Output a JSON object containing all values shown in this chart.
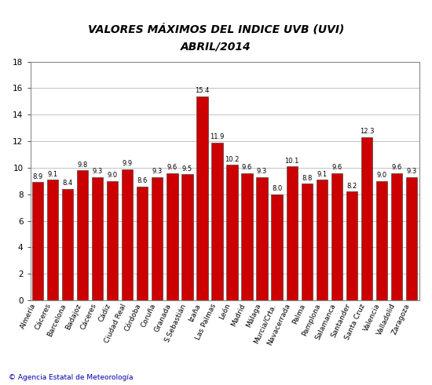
{
  "title_line1": "VALORES MÁXIMOS DEL INDICE UVB (UVI)",
  "title_line2": "ABRIL/2014",
  "labels": [
    "Almería",
    "Cáceres",
    "Barcelona",
    "Badajoz",
    "Cáceres",
    "Cádiz",
    "Ciudad Real",
    "Córdoba",
    "Coruña",
    "Granada",
    "S.Sebastián",
    "Izaña",
    "Las Palmas",
    "León",
    "Madrid",
    "Málaga",
    "Murcia/Crta.",
    "Navacerrada",
    "Palma",
    "Pamplona",
    "Salamanca",
    "Santander",
    "Santa Cruz",
    "Valencia",
    "Valladolid",
    "Zaragoza"
  ],
  "values": [
    8.9,
    9.1,
    8.4,
    9.8,
    9.3,
    9.0,
    9.9,
    8.6,
    9.3,
    9.6,
    9.5,
    15.4,
    11.9,
    10.2,
    9.6,
    9.3,
    8.0,
    10.1,
    8.8,
    9.1,
    9.6,
    8.2,
    12.3,
    9.0,
    9.6,
    9.3
  ],
  "bar_color": "#cc0000",
  "bar_edge_color": "#333333",
  "background_color": "#ffffff",
  "grid_color": "#aaaaaa",
  "ylim": [
    0,
    18
  ],
  "yticks": [
    0,
    2,
    4,
    6,
    8,
    10,
    12,
    14,
    16,
    18
  ],
  "title_fontsize": 10,
  "label_fontsize": 6.5,
  "value_fontsize": 6,
  "ytick_fontsize": 7.5,
  "footer_text": "© Agencia Estatal de Meteorología"
}
